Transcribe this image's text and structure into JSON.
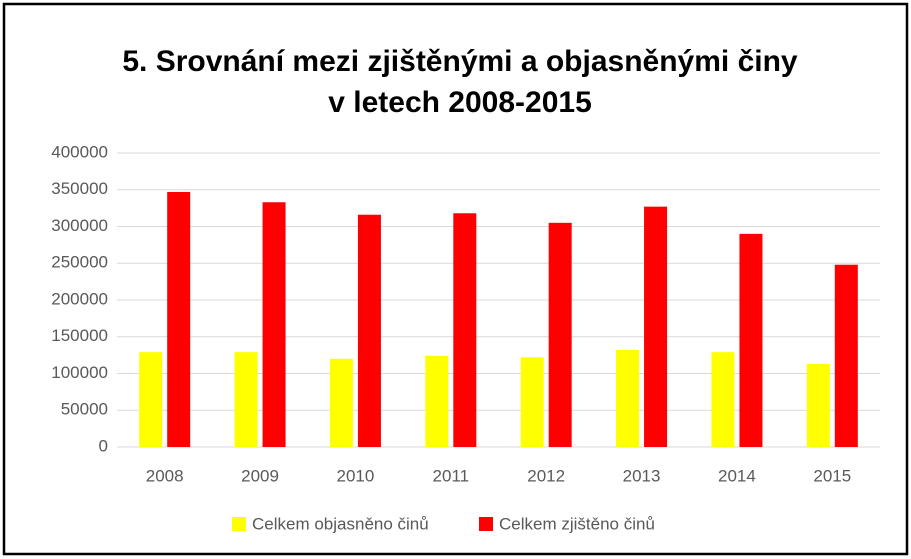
{
  "chart_data": {
    "type": "bar",
    "title": [
      "5. Srovnání mezi zjištěnými a objasněnými činy",
      "v letech 2008-2015"
    ],
    "categories": [
      "2008",
      "2009",
      "2010",
      "2011",
      "2012",
      "2013",
      "2014",
      "2015"
    ],
    "series": [
      {
        "name": "Celkem objasněno činů",
        "color": "#ffff00",
        "values": [
          129000,
          129000,
          120000,
          124000,
          122000,
          132000,
          129000,
          113000
        ]
      },
      {
        "name": "Celkem zjištěno činů",
        "color": "#ff0000",
        "values": [
          347000,
          333000,
          316000,
          318000,
          305000,
          327000,
          290000,
          248000
        ]
      }
    ],
    "ylim": [
      0,
      400000
    ],
    "yticks": [
      0,
      50000,
      100000,
      150000,
      200000,
      250000,
      300000,
      350000,
      400000
    ],
    "grid": true,
    "legend": "bottom"
  }
}
